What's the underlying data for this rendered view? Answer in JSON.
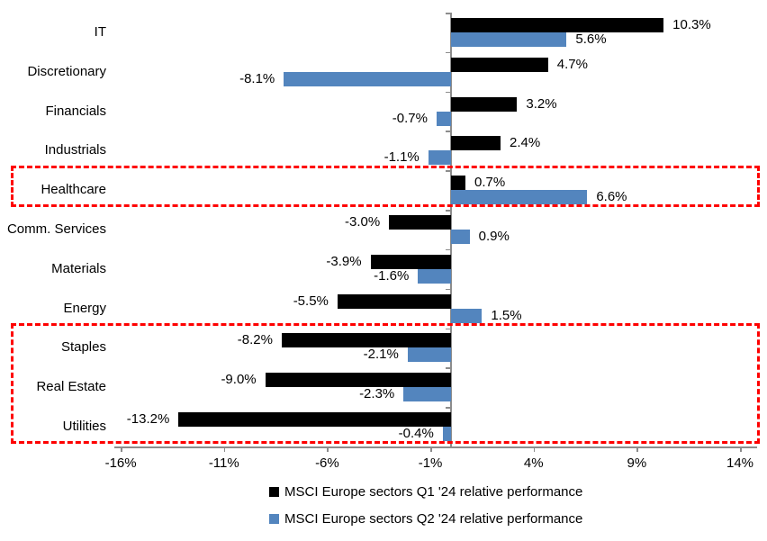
{
  "chart_data": {
    "type": "bar",
    "orientation": "horizontal",
    "title": "",
    "categories": [
      "IT",
      "Discretionary",
      "Financials",
      "Industrials",
      "Healthcare",
      "Comm. Services",
      "Materials",
      "Energy",
      "Staples",
      "Real Estate",
      "Utilities"
    ],
    "series": [
      {
        "name": "MSCI Europe sectors Q1 '24 relative performance",
        "color": "#000000",
        "values": [
          10.3,
          4.7,
          3.2,
          2.4,
          0.7,
          -3.0,
          -3.9,
          -5.5,
          -8.2,
          -9.0,
          -13.2
        ],
        "labels": [
          "10.3%",
          "4.7%",
          "3.2%",
          "2.4%",
          "0.7%",
          "-3.0%",
          "-3.9%",
          "-5.5%",
          "-8.2%",
          "-9.0%",
          "-13.2%"
        ]
      },
      {
        "name": "MSCI Europe sectors Q2 '24 relative performance",
        "color": "#5385be",
        "values": [
          5.6,
          -8.1,
          -0.7,
          -1.1,
          6.6,
          0.9,
          -1.6,
          1.5,
          -2.1,
          -2.3,
          -0.4
        ],
        "labels": [
          "5.6%",
          "-8.1%",
          "-0.7%",
          "-1.1%",
          "6.6%",
          "0.9%",
          "-1.6%",
          "1.5%",
          "-2.1%",
          "-2.3%",
          "-0.4%"
        ]
      }
    ],
    "x_axis": {
      "tick_labels": [
        "-16%",
        "-11%",
        "-6%",
        "-1%",
        "4%",
        "9%",
        "14%"
      ],
      "tick_values": [
        -16,
        -11,
        -6,
        -1,
        4,
        9,
        14
      ],
      "range": [
        -16.3,
        14.8
      ]
    },
    "grid": false,
    "legend_position": "bottom",
    "axis_color": "#8c8c8c",
    "highlight_color": "#fe0000",
    "highlights": [
      {
        "categories": [
          "Healthcare"
        ],
        "style": "dashed"
      },
      {
        "categories": [
          "Staples",
          "Real Estate",
          "Utilities"
        ],
        "style": "dashed"
      }
    ]
  }
}
